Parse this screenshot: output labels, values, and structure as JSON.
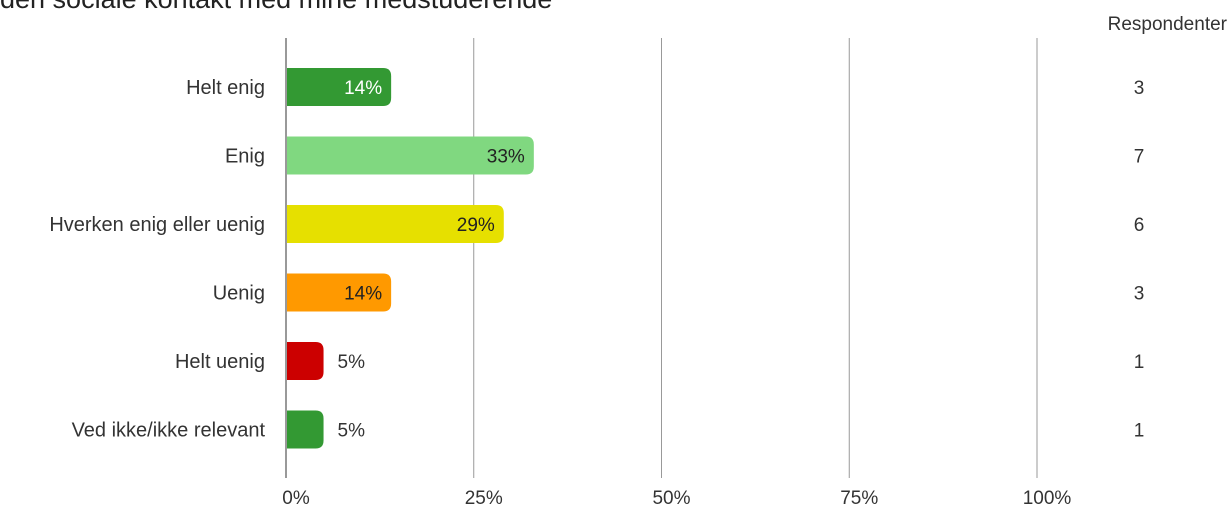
{
  "title": "den sociale kontakt med mine medstuderende",
  "respondents_header": "Respondenter",
  "chart_data": {
    "type": "bar",
    "orientation": "horizontal",
    "title": "den sociale kontakt med mine medstuderende",
    "xlabel": "",
    "ylabel": "",
    "xlim": [
      0,
      100
    ],
    "x_ticks": [
      "0%",
      "25%",
      "50%",
      "75%",
      "100%"
    ],
    "x_tick_values": [
      0,
      25,
      50,
      75,
      100
    ],
    "grid": true,
    "categories": [
      "Helt enig",
      "Enig",
      "Hverken enig eller uenig",
      "Uenig",
      "Helt uenig",
      "Ved ikke/ikke relevant"
    ],
    "values": [
      14,
      33,
      29,
      14,
      5,
      5
    ],
    "data_labels": [
      "14%",
      "33%",
      "29%",
      "14%",
      "5%",
      "5%"
    ],
    "respondents": [
      "3",
      "7",
      "6",
      "3",
      "1",
      "1"
    ],
    "colors": [
      "#339933",
      "#80d880",
      "#e6e000",
      "#ff9900",
      "#cc0000",
      "#339933"
    ],
    "label_colors": [
      "#ffffff",
      "#222222",
      "#222222",
      "#222222",
      "#333333",
      "#333333"
    ]
  }
}
